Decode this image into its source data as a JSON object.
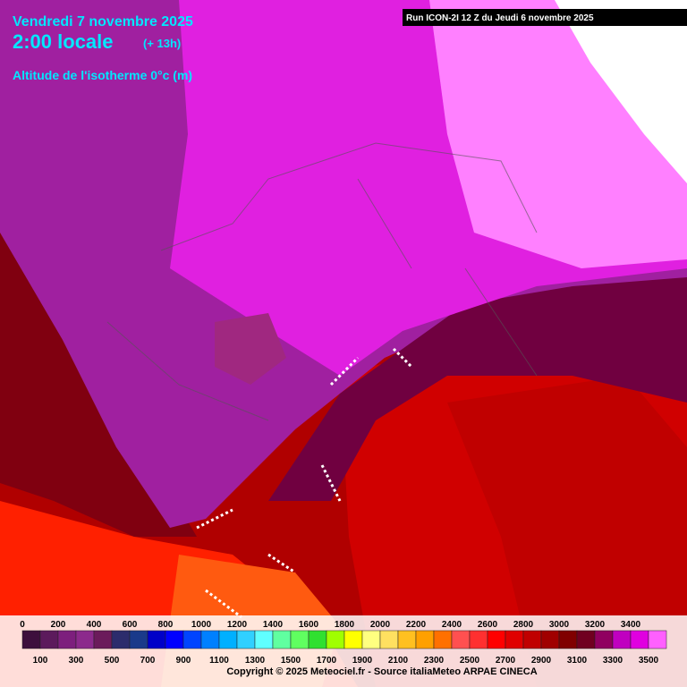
{
  "header": {
    "date": "Vendredi 7 novembre 2025",
    "time": "2:00 locale",
    "offset": "(+ 13h)",
    "parameter": "Altitude de l'isotherme 0°c (m)",
    "run": "Run ICON-2I 12 Z du Jeudi 6 novembre 2025"
  },
  "scale": {
    "values": [
      0,
      100,
      200,
      300,
      400,
      500,
      600,
      700,
      800,
      900,
      1000,
      1100,
      1200,
      1300,
      1400,
      1500,
      1600,
      1700,
      1800,
      1900,
      2000,
      2100,
      2200,
      2300,
      2400,
      2500,
      2600,
      2700,
      2800,
      2900,
      3000,
      3100,
      3200,
      3300,
      3400,
      3500
    ],
    "colors": [
      "#3d0f3d",
      "#5c1a5c",
      "#7d1f7d",
      "#8c2a8c",
      "#6b1b5b",
      "#2c2c6c",
      "#1a3a8a",
      "#0000c8",
      "#0000ff",
      "#0044ff",
      "#0080ff",
      "#00b0ff",
      "#30d0ff",
      "#60ffff",
      "#60ffa0",
      "#60ff60",
      "#30e030",
      "#a0ff00",
      "#ffff00",
      "#ffff80",
      "#ffe060",
      "#ffc020",
      "#ffa000",
      "#ff7000",
      "#ff5050",
      "#ff3030",
      "#ff0000",
      "#e00000",
      "#c00000",
      "#a00000",
      "#800000",
      "#700020",
      "#900060",
      "#c000c0",
      "#e000e0",
      "#ff60ff"
    ]
  },
  "footer": {
    "copyright": "Copyright © 2025 Meteociel.fr - Source italiaMeteo ARPAE CINECA"
  }
}
